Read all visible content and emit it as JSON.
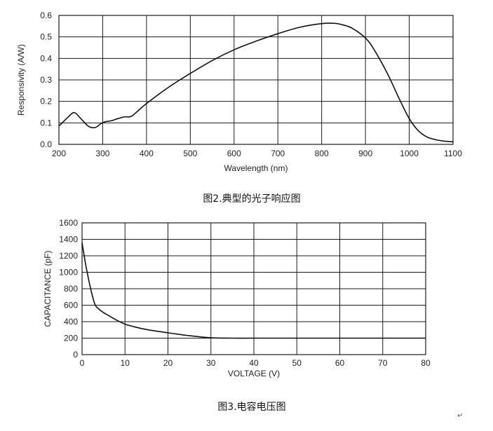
{
  "chart_data": [
    {
      "type": "line",
      "title": "",
      "caption": "图2.典型的光子响应图",
      "xlabel": "Wavelength (nm)",
      "ylabel": "Responsivity (A/W)",
      "xlim": [
        200,
        1100
      ],
      "ylim": [
        0.0,
        0.6
      ],
      "x_ticks": [
        "200",
        "300",
        "400",
        "500",
        "600",
        "700",
        "800",
        "900",
        "1000",
        "1100"
      ],
      "y_ticks": [
        "0.0",
        "0.1",
        "0.2",
        "0.3",
        "0.4",
        "0.5",
        "0.6"
      ],
      "grid": true,
      "series": [
        {
          "x": [
            200,
            220,
            235,
            250,
            265,
            275,
            285,
            295,
            305,
            320,
            335,
            350,
            365,
            380,
            400,
            450,
            500,
            550,
            600,
            650,
            700,
            750,
            800,
            830,
            850,
            870,
            900,
            920,
            950,
            980,
            1000,
            1020,
            1040,
            1060,
            1080,
            1100
          ],
          "y": [
            0.085,
            0.125,
            0.148,
            0.12,
            0.088,
            0.078,
            0.08,
            0.095,
            0.105,
            0.11,
            0.12,
            0.128,
            0.13,
            0.155,
            0.19,
            0.265,
            0.33,
            0.39,
            0.44,
            0.48,
            0.515,
            0.545,
            0.562,
            0.563,
            0.555,
            0.54,
            0.495,
            0.44,
            0.33,
            0.2,
            0.12,
            0.065,
            0.035,
            0.022,
            0.015,
            0.012
          ]
        }
      ]
    },
    {
      "type": "line",
      "title": "",
      "caption": "图3.电容电压图",
      "xlabel": "VOLTAGE (V)",
      "ylabel": "CAPACITANCE (pF)",
      "xlim": [
        0,
        80
      ],
      "ylim": [
        0,
        1600
      ],
      "x_ticks": [
        "0",
        "10",
        "20",
        "30",
        "40",
        "50",
        "60",
        "70",
        "80"
      ],
      "y_ticks": [
        "0",
        "200",
        "400",
        "600",
        "800",
        "1000",
        "1200",
        "1400",
        "1600"
      ],
      "grid": true,
      "series": [
        {
          "x": [
            0,
            0.5,
            1,
            2,
            3,
            4,
            5,
            6,
            8,
            10,
            12,
            15,
            20,
            25,
            30,
            35,
            40,
            50,
            60,
            70,
            80
          ],
          "y": [
            1360,
            1200,
            1050,
            800,
            610,
            550,
            510,
            480,
            420,
            370,
            340,
            305,
            265,
            230,
            205,
            200,
            200,
            200,
            200,
            200,
            200
          ]
        }
      ]
    }
  ],
  "return_mark": "↵"
}
